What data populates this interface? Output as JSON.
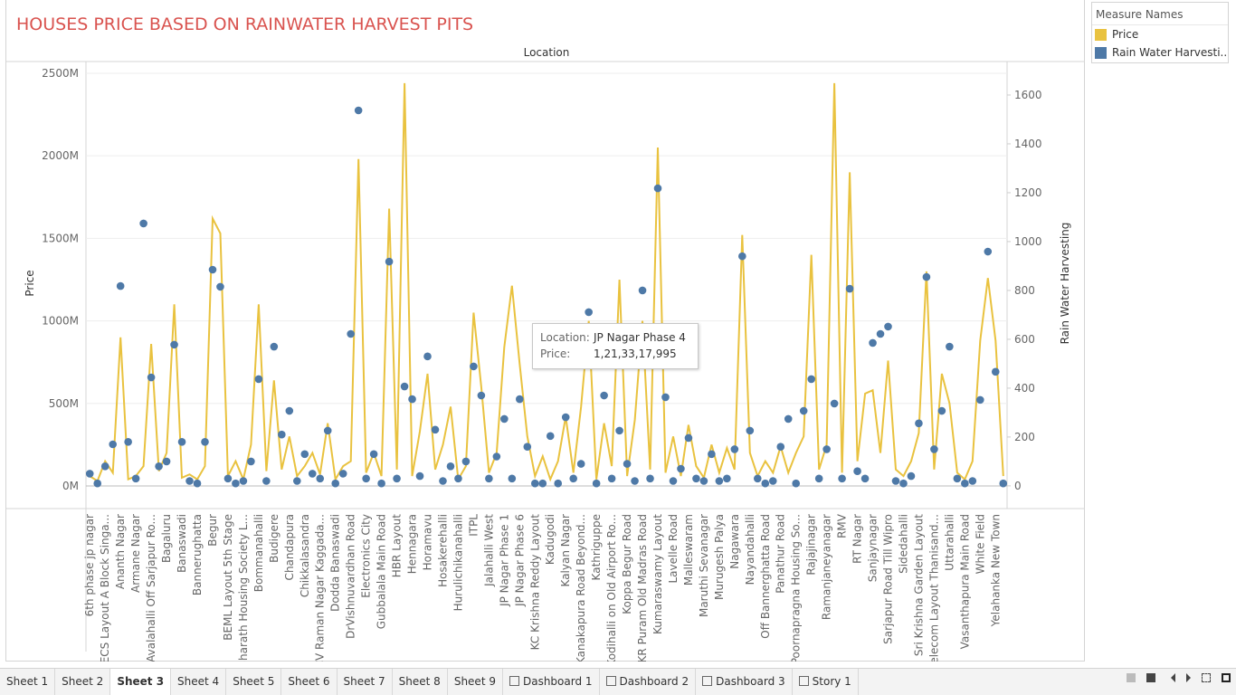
{
  "chart_data": {
    "type": "dual-axis-line-scatter",
    "title": "HOUSES PRICE BASED ON RAINWATER HARVEST PITS",
    "column_header": "Location",
    "y_label": "Price",
    "y2_label": "Rain Water Harvesting",
    "legend_title": "Measure Names",
    "categories": [
      "6th phase jp nagar",
      null,
      "AECS Layout A Block Singa...",
      null,
      "Ananth Nagar",
      null,
      "Armane Nagar",
      null,
      "Avalahalli Off Sarjapur Ro...",
      null,
      "Bagaluru",
      null,
      "Banaswadi",
      null,
      "Bannerughatta",
      null,
      "Begur",
      null,
      "BEML Layout 5th Stage",
      null,
      "Bharath Housing Society L...",
      null,
      "Bommanahalli",
      null,
      "Budigere",
      null,
      "Chandapura",
      null,
      "Chikkalasandra",
      null,
      "CV Raman Nagar Kaggada...",
      null,
      "Dodda Banaswadi",
      null,
      "DrVishnuvardhan Road",
      null,
      "Electronics City",
      null,
      "Gubbalala Main Road",
      null,
      "HBR Layout",
      null,
      "Hennagara",
      null,
      "Horamavu",
      null,
      "Hosakerehalli",
      null,
      "Hurulichikanahalli",
      null,
      "ITPL",
      null,
      "Jalahalli West",
      null,
      "JP Nagar Phase 1",
      null,
      "JP Nagar Phase 6",
      null,
      "KC Krishna Reddy Layout",
      null,
      "Kadugodi",
      null,
      "Kalyan Nagar",
      null,
      "Kanakapura Road Beyond...",
      null,
      "Kathriguppe",
      null,
      "Kodihalli on Old Airport Ro...",
      null,
      "Koppa Begur Road",
      null,
      "KR Puram Old Madras Road",
      null,
      "Kumaraswamy Layout",
      null,
      "Lavelle Road",
      null,
      "Malleswaram",
      null,
      "Maruthi Sevanagar",
      null,
      "Murugesh Palya",
      null,
      "Nagawara",
      null,
      "Nayandahalli",
      null,
      "Off Bannerghatta Road",
      null,
      "Panathur Road",
      null,
      "Poornapragna Housing So...",
      null,
      "Rajajinagar",
      null,
      "Ramanjaneyanagar",
      null,
      "RMV",
      null,
      "RT Nagar",
      null,
      "Sanjaynagar",
      null,
      "Sarjapur Road Till Wipro",
      null,
      "Sidedahalli",
      null,
      "Sri Krishna Garden Layout",
      null,
      "Telecom Layout Thanisand...",
      null,
      "Uttarahalli",
      null,
      "Vasanthapura Main Road",
      null,
      "White Field",
      null,
      "Yelahanka New Town",
      null
    ],
    "series": [
      {
        "name": "Price",
        "color": "#e9c23f",
        "mark": "line",
        "values": [
          60,
          30,
          150,
          80,
          900,
          40,
          60,
          120,
          860,
          90,
          200,
          1100,
          50,
          70,
          40,
          120,
          1620,
          1530,
          60,
          150,
          40,
          250,
          1100,
          90,
          640,
          100,
          300,
          60,
          120,
          200,
          70,
          380,
          40,
          120,
          150,
          1980,
          80,
          200,
          60,
          1680,
          100,
          2440,
          60,
          330,
          680,
          100,
          250,
          480,
          40,
          120,
          1050,
          600,
          80,
          200,
          840,
          1213.3,
          740,
          300,
          60,
          180,
          40,
          150,
          420,
          80,
          480,
          1000,
          40,
          380,
          120,
          1250,
          60,
          400,
          1000,
          100,
          2050,
          80,
          300,
          60,
          370,
          120,
          50,
          250,
          80,
          230,
          100,
          1520,
          200,
          60,
          150,
          80,
          240,
          80,
          200,
          300,
          1400,
          100,
          250,
          2440,
          80,
          1900,
          150,
          560,
          580,
          200,
          760,
          100,
          60,
          150,
          320,
          1300,
          100,
          680,
          500,
          80,
          40,
          150,
          880,
          1260,
          880,
          60
        ]
      },
      {
        "name": "Rain Water Harvesti..",
        "color": "#4e79a7",
        "mark": "circle",
        "axis": "y2",
        "values": [
          50,
          10,
          80,
          170,
          818,
          180,
          30,
          1074,
          444,
          80,
          100,
          578,
          180,
          20,
          10,
          180,
          885,
          815,
          30,
          10,
          20,
          100,
          437,
          20,
          570,
          210,
          307,
          20,
          130,
          50,
          30,
          226,
          10,
          50,
          622,
          1537,
          30,
          130,
          10,
          918,
          30,
          407,
          355,
          40,
          530,
          230,
          20,
          80,
          30,
          100,
          489,
          370,
          30,
          120,
          274,
          30,
          355,
          160,
          10,
          10,
          204,
          10,
          281,
          30,
          90,
          711,
          10,
          370,
          30,
          226,
          90,
          20,
          800,
          30,
          1218,
          363,
          20,
          70,
          196,
          30,
          20,
          130,
          20,
          30,
          150,
          940,
          226,
          30,
          10,
          20,
          160,
          274,
          10,
          307,
          437,
          30,
          150,
          337,
          30,
          807,
          60,
          30,
          585,
          622,
          652,
          20,
          10,
          40,
          256,
          855,
          150,
          307,
          570,
          30,
          10,
          20,
          352,
          959,
          467,
          10
        ]
      }
    ],
    "ylim": [
      -137,
      2571
    ],
    "yticks": [
      {
        "value": 0,
        "label": "0M"
      },
      {
        "value": 500,
        "label": "500M"
      },
      {
        "value": 1000,
        "label": "1000M"
      },
      {
        "value": 1500,
        "label": "1500M"
      },
      {
        "value": 2000,
        "label": "2000M"
      },
      {
        "value": 2500,
        "label": "2500M"
      }
    ],
    "y2lim": [
      -93,
      1737
    ],
    "y2ticks": [
      0,
      200,
      400,
      600,
      800,
      1000,
      1200,
      1400,
      1600
    ],
    "grid": true,
    "tooltip": {
      "location_key": "Location:",
      "location": "JP Nagar Phase 4",
      "price_key": "Price:",
      "price": "1,21,33,17,995"
    }
  },
  "tabs": [
    "Sheet 1",
    "Sheet 2",
    "Sheet 3",
    "Sheet 4",
    "Sheet 5",
    "Sheet 6",
    "Sheet 7",
    "Sheet 8",
    "Sheet 9",
    "Dashboard 1",
    "Dashboard 2",
    "Dashboard 3",
    "Story 1"
  ],
  "active_tab": 2
}
